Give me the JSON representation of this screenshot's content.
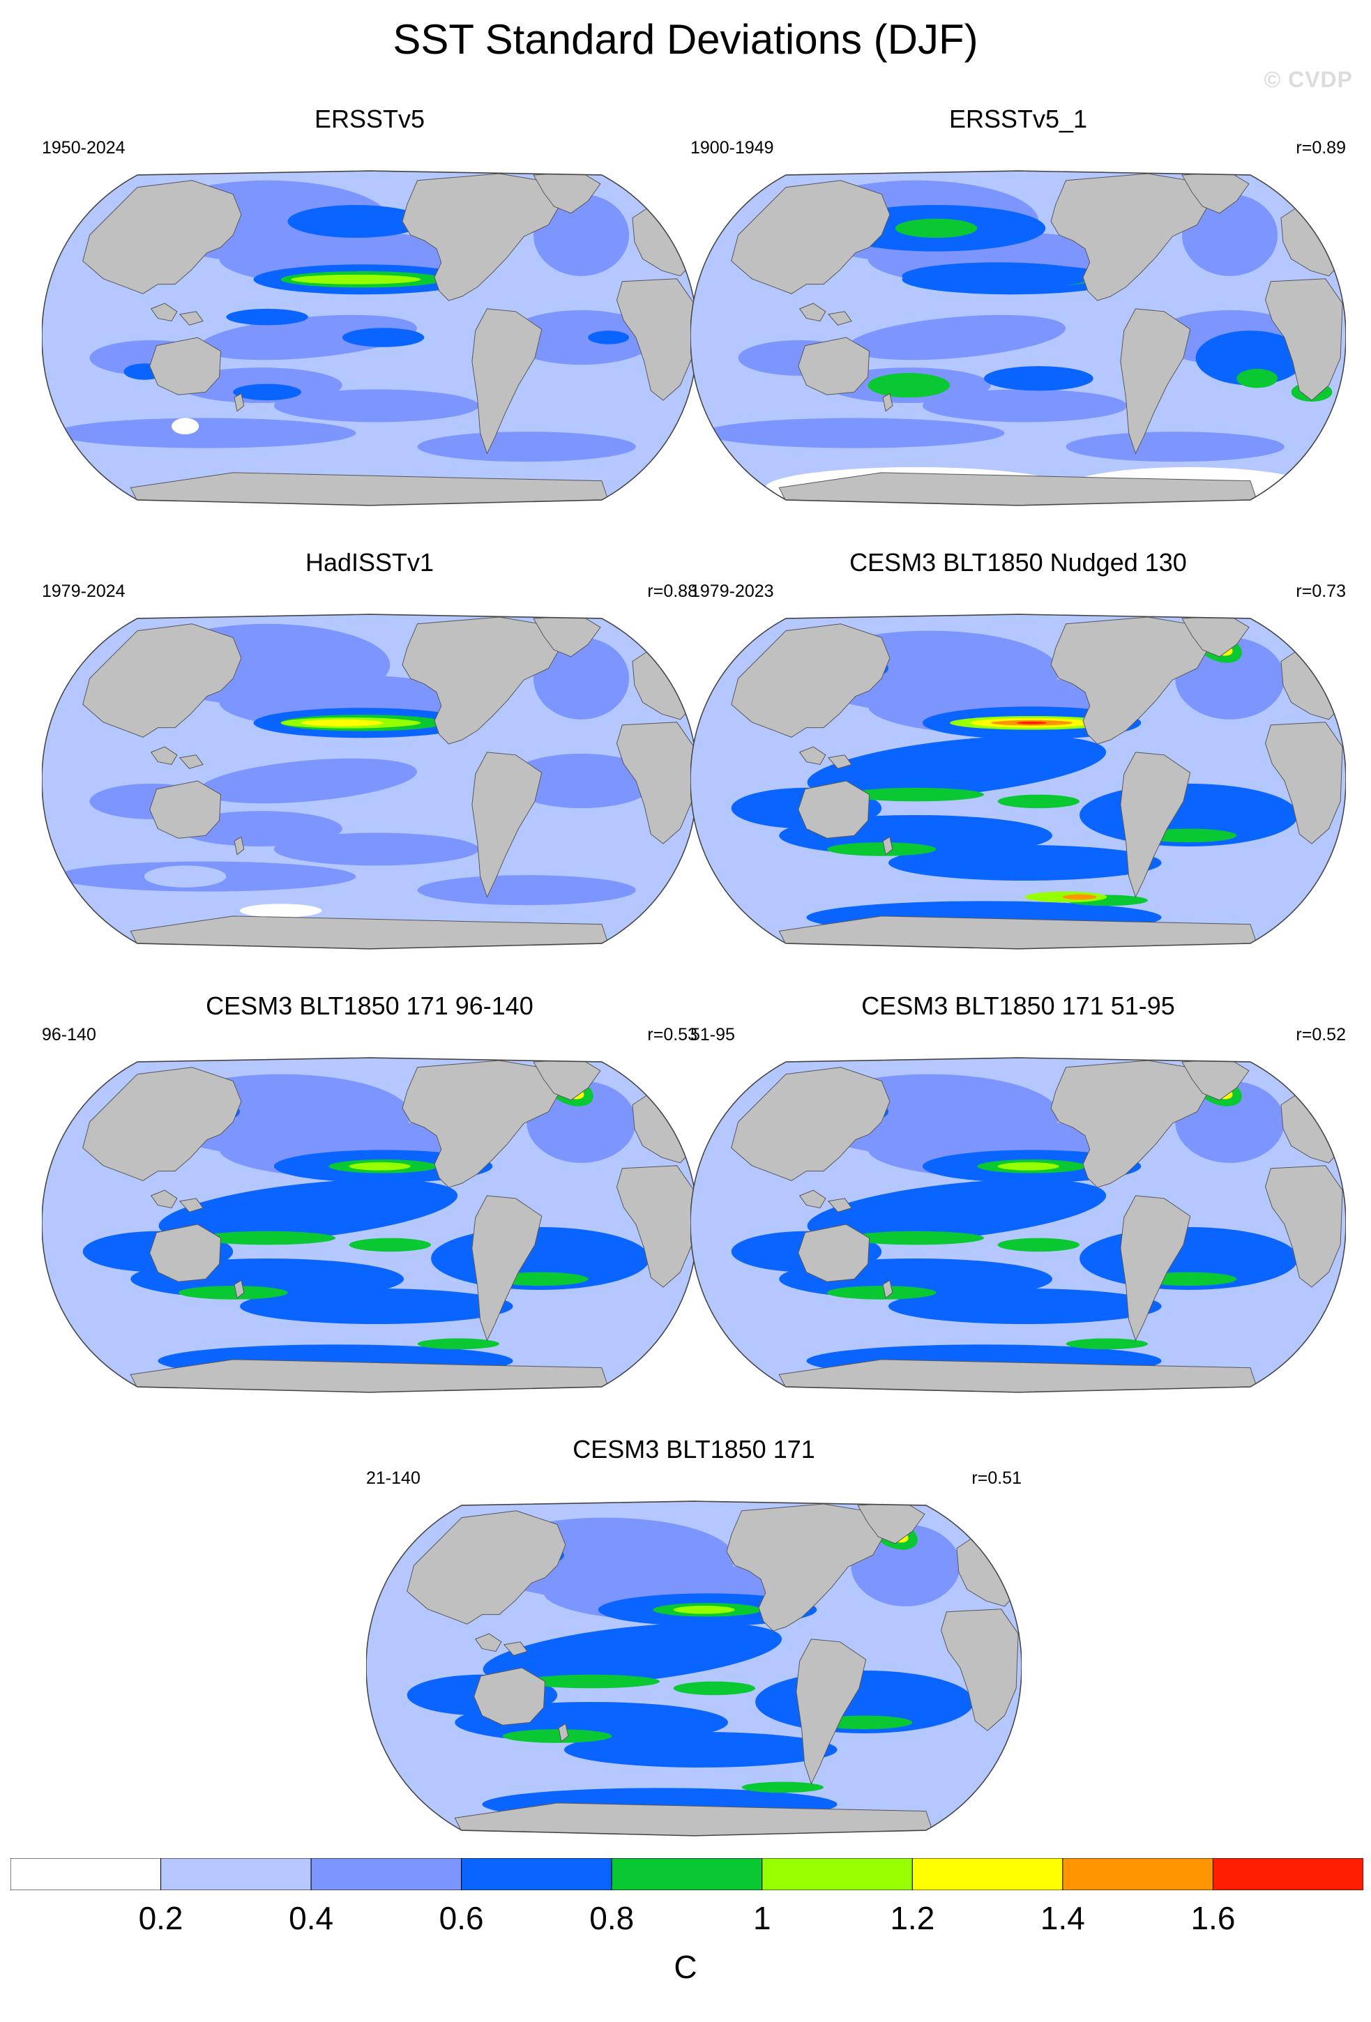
{
  "title": "SST Standard Deviations (DJF)",
  "watermark": "© CVDP",
  "panels": [
    {
      "title": "ERSSTv5",
      "period": "1950-2024",
      "corr": "",
      "style": "ersst"
    },
    {
      "title": "ERSSTv5_1",
      "period": "1900-1949",
      "corr": "r=0.89",
      "style": "ersst1"
    },
    {
      "title": "HadISSTv1",
      "period": "1979-2024",
      "corr": "r=0.88",
      "style": "hadisst"
    },
    {
      "title": "CESM3 BLT1850 Nudged 130",
      "period": "1979-2023",
      "corr": "r=0.73",
      "style": "nudged"
    },
    {
      "title": "CESM3 BLT1850 171 96-140",
      "period": "96-140",
      "corr": "r=0.53",
      "style": "model"
    },
    {
      "title": "CESM3 BLT1850 171 51-95",
      "period": "51-95",
      "corr": "r=0.52",
      "style": "model"
    },
    {
      "title": "CESM3 BLT1850 171",
      "period": "21-140",
      "corr": "r=0.51",
      "style": "model"
    }
  ],
  "colorbar": {
    "colors": [
      "#ffffff",
      "#b4c8ff",
      "#7d96ff",
      "#0a64ff",
      "#0ac832",
      "#96ff00",
      "#ffff00",
      "#ff9600",
      "#ff1e00"
    ],
    "labels": [
      "0.2",
      "0.4",
      "0.6",
      "0.8",
      "1",
      "1.2",
      "1.4",
      "1.6"
    ],
    "unit": "C"
  }
}
